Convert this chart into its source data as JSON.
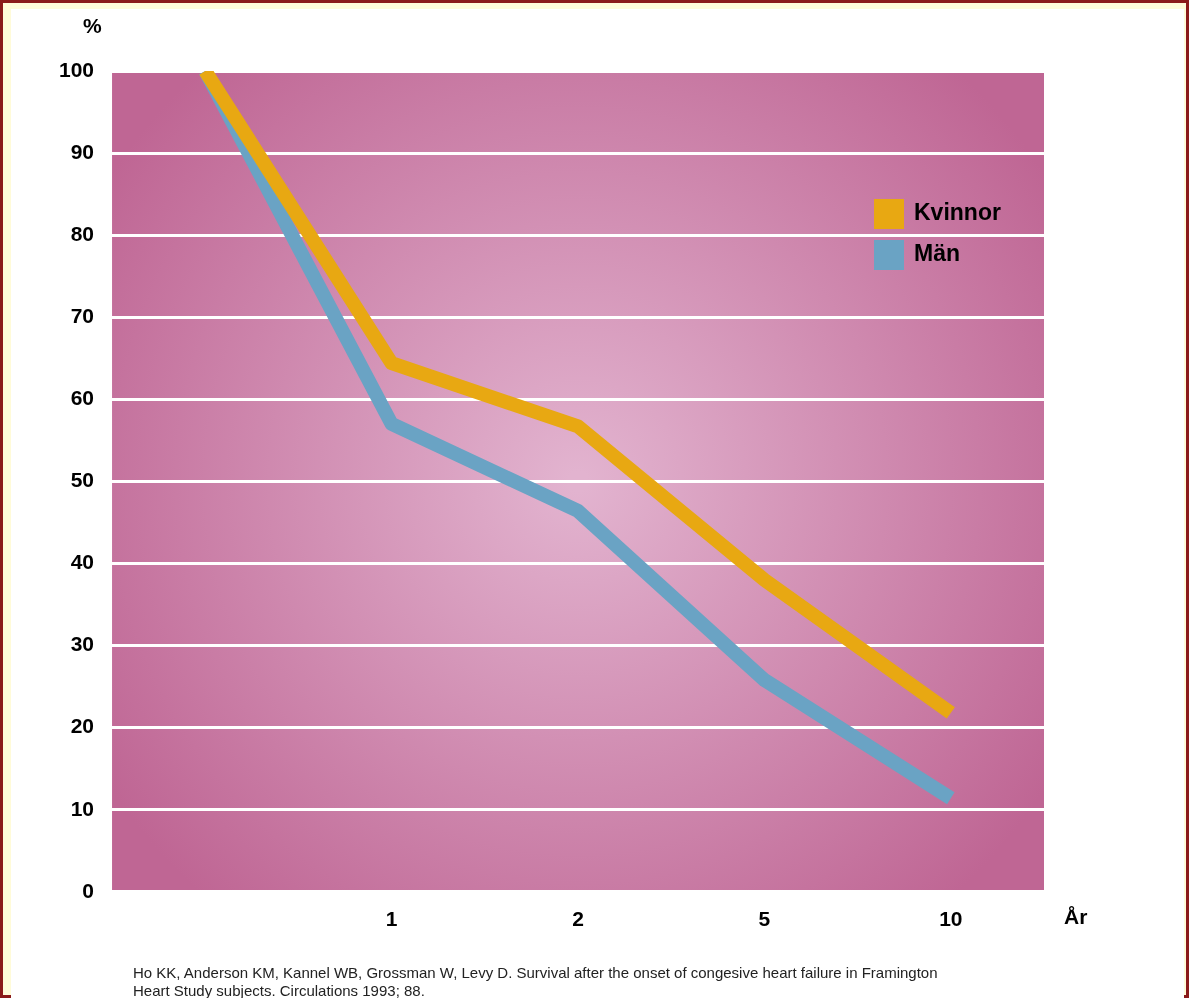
{
  "chart_data": {
    "type": "line",
    "ylabel": "%",
    "xlabel": "År",
    "categories": [
      null,
      "1",
      "2",
      "5",
      "10"
    ],
    "ylim": [
      0,
      100
    ],
    "yticks": [
      0,
      10,
      20,
      30,
      40,
      50,
      60,
      70,
      80,
      90,
      100
    ],
    "series": [
      {
        "name": "Kvinnor",
        "color": "#e8a812",
        "values": [
          100,
          64.4,
          56.7,
          38,
          21.8
        ]
      },
      {
        "name": "Män",
        "color": "#6aa3c4",
        "values": [
          100,
          57,
          46.4,
          25.8,
          11.4
        ]
      }
    ],
    "grid": "y",
    "legend": "top right",
    "marker": "none",
    "line_style": "solid",
    "annotations": [
      "Ho KK, Anderson KM, Kannel WB, Grossman W, Levy D. Survival after the onset of congesive heart failure in Framington Heart Study subjects. Circulations 1993; 88."
    ]
  }
}
